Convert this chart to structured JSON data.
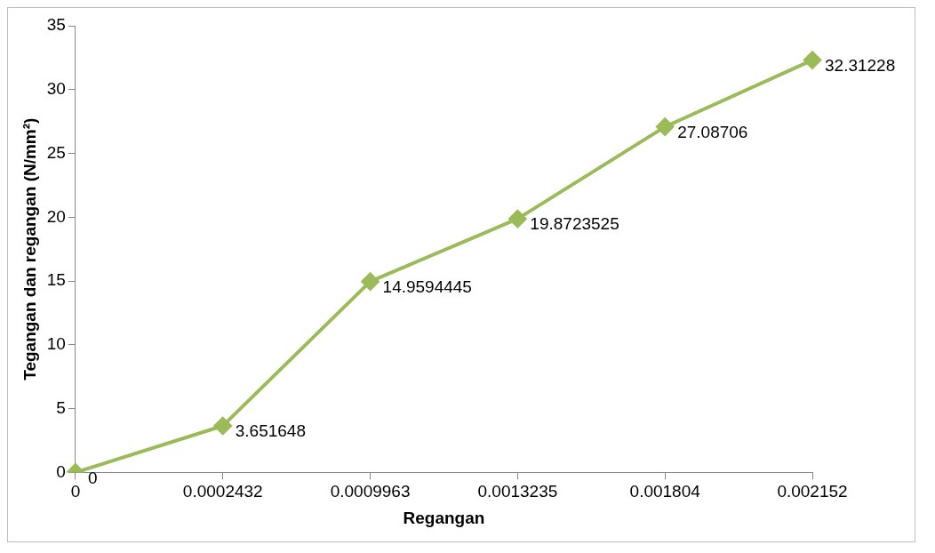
{
  "chart_data": {
    "type": "line",
    "xlabel": "Regangan",
    "ylabel": "Tegangan dan regangan (N/mm²)",
    "categories": [
      "0",
      "0.0002432",
      "0.0009963",
      "0.0013235",
      "0.001804",
      "0.002152"
    ],
    "values": [
      0,
      3.651648,
      14.9594445,
      19.8723525,
      27.08706,
      32.31228
    ],
    "color": "#9bbb59",
    "ylim": [
      0,
      35
    ],
    "yticks": [
      0,
      5,
      10,
      15,
      20,
      25,
      30,
      35
    ],
    "grid": false,
    "legend": false,
    "marker": "diamond",
    "line_style": "solid",
    "data_labels": true
  }
}
